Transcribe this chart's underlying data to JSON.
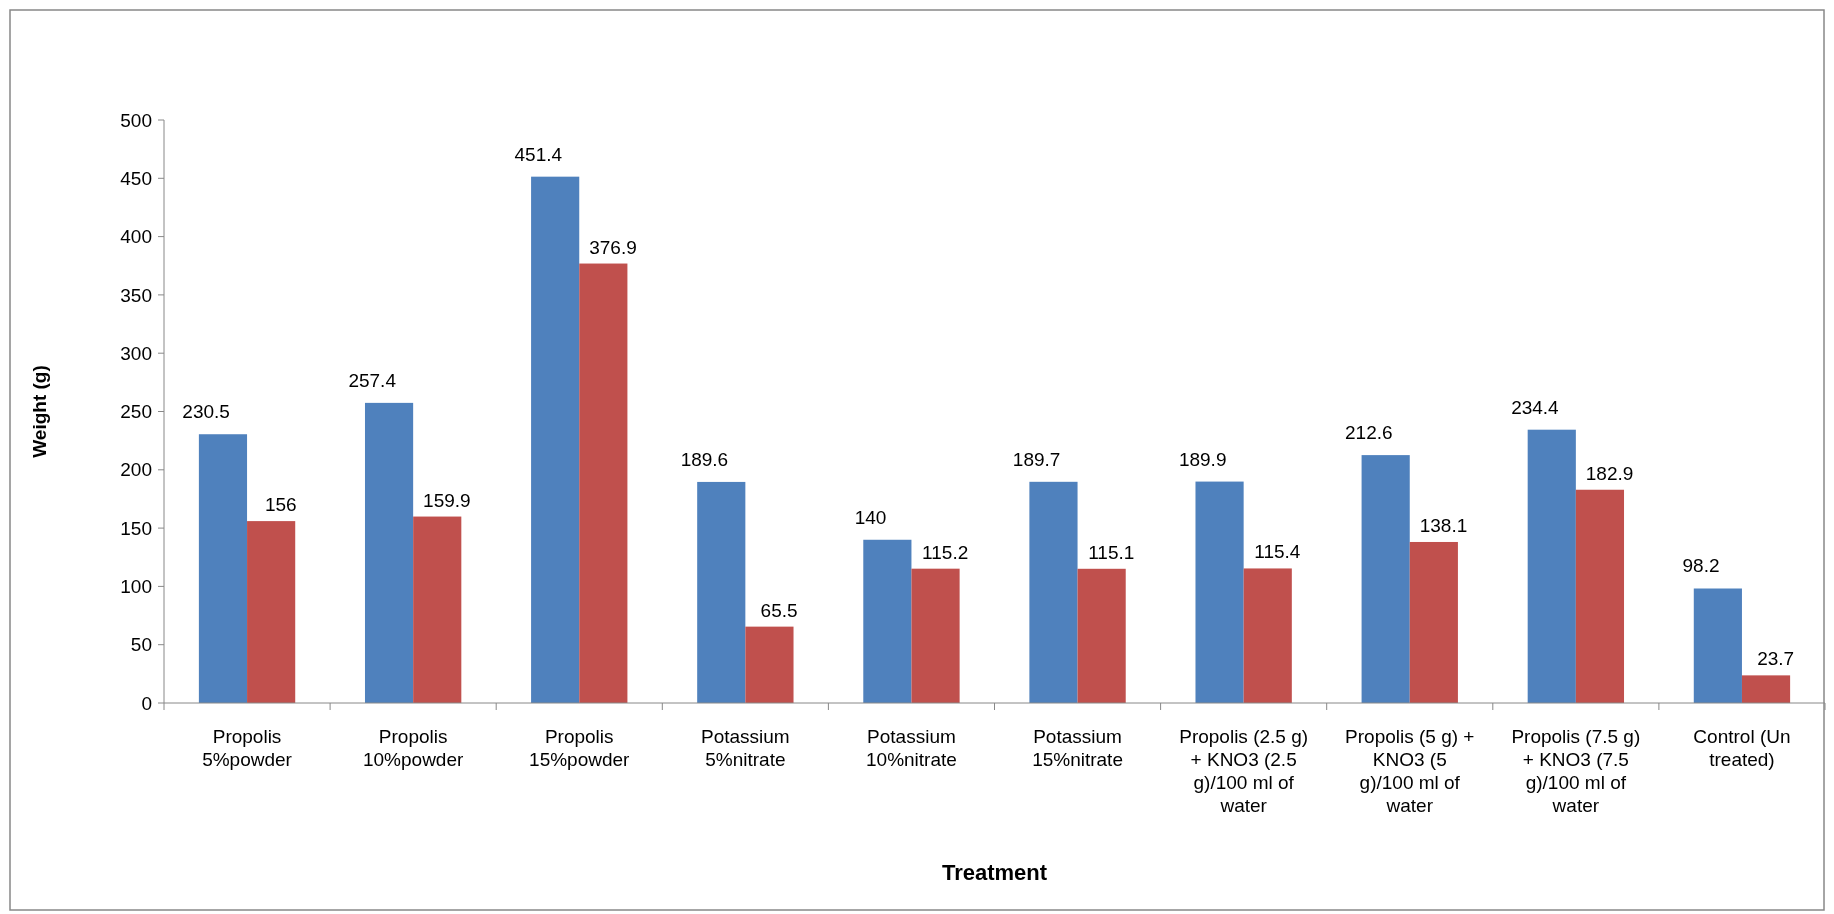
{
  "chart_data": {
    "type": "bar",
    "xlabel": "Treatment",
    "ylabel": "Weight (g)",
    "categories": [
      "Propolis 5%powder",
      "Propolis 10%powder",
      "Propolis 15%powder",
      "Potassium 5%nitrate",
      "Potassium 10%nitrate",
      "Potassium 15%nitrate",
      "Propolis (2.5 g) + KNO3 (2.5 g)/100 ml of water",
      "Propolis (5 g) + KNO3 (5 g)/100 ml of water",
      "Propolis (7.5 g) + KNO3 (7.5 g)/100 ml of water",
      "Control (Un treated)"
    ],
    "series": [
      {
        "color": "#4f81bd",
        "values": [
          230.5,
          257.4,
          451.4,
          189.6,
          140,
          189.7,
          189.9,
          212.6,
          234.4,
          98.2
        ]
      },
      {
        "color": "#c0504d",
        "values": [
          156,
          159.9,
          376.9,
          65.5,
          115.2,
          115.1,
          115.4,
          138.1,
          182.9,
          23.7
        ]
      }
    ],
    "ylim": [
      0,
      500
    ],
    "yticks": [
      0,
      50,
      100,
      150,
      200,
      250,
      300,
      350,
      400,
      450,
      500
    ],
    "data_labels": true,
    "grid": false
  }
}
